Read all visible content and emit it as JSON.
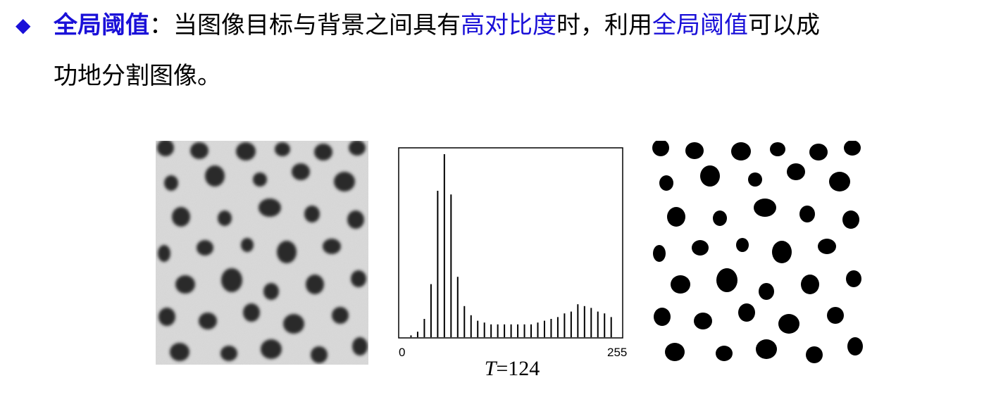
{
  "bullet": {
    "icon": "diamond-bullet-icon",
    "term": "全局阈值",
    "colon": "：",
    "text_a": "当图像目标与背景之间具有",
    "highlight_1": "高对比度",
    "text_b": "时，利用",
    "highlight_2": "全局阈值",
    "text_c": "可以成",
    "line2": "功地分割图像。"
  },
  "colors": {
    "accent": "#1a10d8",
    "text": "#000000"
  },
  "figure": {
    "original_image_icon": "grayscale-cells-image",
    "binary_image_icon": "binary-cells-image",
    "histogram": {
      "x_min_label": "0",
      "x_max_label": "255",
      "threshold_var": "T",
      "threshold_eq": "=",
      "threshold_value": "124"
    }
  },
  "chart_data": {
    "type": "bar",
    "title": "",
    "xlabel": "",
    "ylabel": "",
    "xlim": [
      0,
      255
    ],
    "ylim": [
      0,
      100
    ],
    "x": [
      8,
      16,
      24,
      32,
      40,
      48,
      56,
      64,
      72,
      80,
      88,
      96,
      104,
      112,
      120,
      128,
      136,
      144,
      152,
      160,
      168,
      176,
      184,
      192,
      200,
      208,
      216,
      224,
      232,
      240,
      248
    ],
    "values": [
      1,
      3,
      10,
      29,
      80,
      100,
      78,
      33,
      17,
      12,
      9,
      8,
      7,
      7,
      7,
      7,
      7,
      7,
      7,
      8,
      9,
      10,
      11,
      13,
      14,
      18,
      17,
      16,
      14,
      13,
      11
    ]
  }
}
